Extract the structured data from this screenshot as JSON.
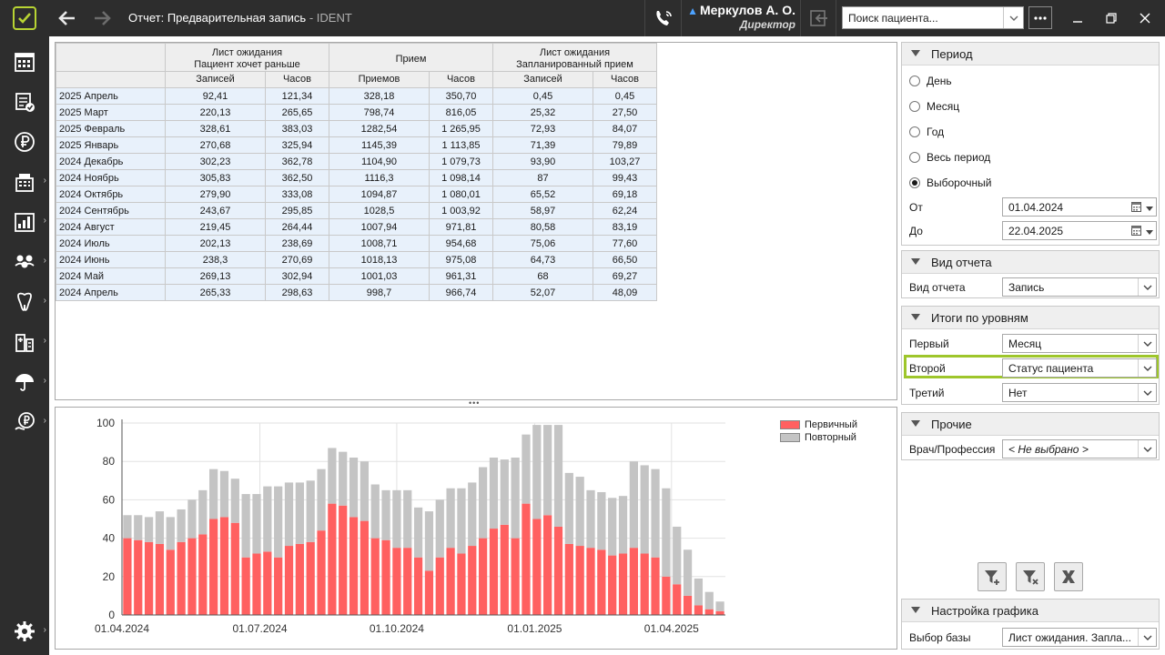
{
  "window": {
    "title": "Отчет: Предварительная запись",
    "app_suffix": "- IDENT",
    "user_name": "Меркулов А. О.",
    "user_role": "Директор",
    "search_placeholder": "Поиск пациента..."
  },
  "sidebar": {
    "items": [
      {
        "icon": "calendar-grid-icon",
        "has_submenu": false
      },
      {
        "icon": "document-check-icon",
        "has_submenu": false
      },
      {
        "icon": "ruble-icon",
        "has_submenu": false
      },
      {
        "icon": "cash-register-icon",
        "has_submenu": true
      },
      {
        "icon": "bar-chart-icon",
        "has_submenu": true
      },
      {
        "icon": "people-icon",
        "has_submenu": true
      },
      {
        "icon": "tooth-icon",
        "has_submenu": true
      },
      {
        "icon": "clinic-icon",
        "has_submenu": true
      },
      {
        "icon": "umbrella-icon",
        "has_submenu": true
      },
      {
        "icon": "ruble-hand-icon",
        "has_submenu": true
      },
      {
        "icon": "gear-icon",
        "has_submenu": true
      }
    ]
  },
  "report": {
    "group_headers": [
      "Лист ожидания\nПациент хочет раньше",
      "Прием",
      "Лист ожидания\nЗапланированный прием"
    ],
    "sub_headers": [
      "Записей",
      "Часов",
      "Приемов",
      "Часов",
      "Записей",
      "Часов"
    ],
    "rows": [
      {
        "label": "2025 Апрель",
        "cells": [
          "92,41",
          "121,34",
          "328,18",
          "350,70",
          "0,45",
          "0,45"
        ]
      },
      {
        "label": "2025 Март",
        "cells": [
          "220,13",
          "265,65",
          "798,74",
          "816,05",
          "25,32",
          "27,50"
        ]
      },
      {
        "label": "2025 Февраль",
        "cells": [
          "328,61",
          "383,03",
          "1282,54",
          "1 265,95",
          "72,93",
          "84,07"
        ]
      },
      {
        "label": "2025 Январь",
        "cells": [
          "270,68",
          "325,94",
          "1145,39",
          "1 113,85",
          "71,39",
          "79,89"
        ]
      },
      {
        "label": "2024 Декабрь",
        "cells": [
          "302,23",
          "362,78",
          "1104,90",
          "1 079,73",
          "93,90",
          "103,27"
        ]
      },
      {
        "label": "2024 Ноябрь",
        "cells": [
          "305,83",
          "362,50",
          "1116,3",
          "1 098,14",
          "87",
          "99,43"
        ]
      },
      {
        "label": "2024 Октябрь",
        "cells": [
          "279,90",
          "333,08",
          "1094,87",
          "1 080,01",
          "65,52",
          "69,18"
        ]
      },
      {
        "label": "2024 Сентябрь",
        "cells": [
          "243,67",
          "295,85",
          "1028,5",
          "1 003,92",
          "58,97",
          "62,24"
        ]
      },
      {
        "label": "2024 Август",
        "cells": [
          "219,45",
          "264,44",
          "1007,94",
          "971,81",
          "80,58",
          "83,19"
        ]
      },
      {
        "label": "2024 Июль",
        "cells": [
          "202,13",
          "238,69",
          "1008,71",
          "954,68",
          "75,06",
          "77,60"
        ]
      },
      {
        "label": "2024 Июнь",
        "cells": [
          "238,3",
          "270,69",
          "1018,13",
          "975,08",
          "64,73",
          "66,50"
        ]
      },
      {
        "label": "2024 Май",
        "cells": [
          "269,13",
          "302,94",
          "1001,03",
          "961,31",
          "68",
          "69,27"
        ]
      },
      {
        "label": "2024 Апрель",
        "cells": [
          "265,33",
          "298,63",
          "998,7",
          "966,74",
          "52,07",
          "48,09"
        ]
      }
    ]
  },
  "chart_data": {
    "type": "bar",
    "stacked": true,
    "y_ticks": [
      "0",
      "20",
      "40",
      "60",
      "80",
      "100"
    ],
    "ylim": [
      0,
      100
    ],
    "x_tick_labels": [
      "01.04.2024",
      "01.07.2024",
      "01.10.2024",
      "01.01.2025",
      "01.04.2025"
    ],
    "legend_position": "top-right",
    "series": [
      {
        "name": "Первичный",
        "color": "#ff6060",
        "values": [
          40,
          39,
          38,
          37,
          34,
          38,
          40,
          42,
          50,
          51,
          48,
          30,
          32,
          33,
          30,
          36,
          37,
          38,
          44,
          58,
          57,
          51,
          49,
          40,
          39,
          35,
          35,
          30,
          23,
          30,
          35,
          32,
          36,
          40,
          45,
          47,
          40,
          58,
          50,
          52,
          46,
          37,
          36,
          35,
          34,
          31,
          32,
          35,
          32,
          30,
          20,
          16,
          10,
          5,
          3,
          2
        ]
      },
      {
        "name": "Повторный",
        "color": "#c4c4c4",
        "values": [
          12,
          13,
          13,
          17,
          17,
          17,
          20,
          23,
          26,
          24,
          23,
          33,
          31,
          34,
          37,
          33,
          32,
          32,
          32,
          29,
          28,
          31,
          31,
          28,
          26,
          30,
          30,
          26,
          31,
          30,
          31,
          34,
          33,
          37,
          37,
          34,
          42,
          36,
          49,
          47,
          53,
          37,
          36,
          30,
          30,
          30,
          30,
          45,
          46,
          46,
          46,
          30,
          24,
          14,
          9,
          5
        ]
      }
    ]
  },
  "right_panel": {
    "period": {
      "title": "Период",
      "options": [
        "День",
        "Месяц",
        "Год",
        "Весь период",
        "Выборочный"
      ],
      "selected": 4,
      "from_label": "От",
      "from_value": "01.04.2024",
      "to_label": "До",
      "to_value": "22.04.2025"
    },
    "report_type": {
      "title": "Вид отчета",
      "label": "Вид отчета",
      "value": "Запись"
    },
    "levels": {
      "title": "Итоги по уровням",
      "first_label": "Первый",
      "first_value": "Месяц",
      "second_label": "Второй",
      "second_value": "Статус пациента",
      "third_label": "Третий",
      "third_value": "Нет"
    },
    "other": {
      "title": "Прочие",
      "doctor_label": "Врач/Профессия",
      "doctor_value": "< Не выбрано >"
    },
    "chart_settings": {
      "title": "Настройка графика",
      "base_label": "Выбор базы",
      "base_value": "Лист ожидания. Запла..."
    }
  },
  "colors": {
    "titlebar": "#2d2d2d",
    "accent": "#9ec62b",
    "primary_bar": "#ff6060",
    "repeat_bar": "#c4c4c4",
    "row_bg": "#e8f1fb"
  }
}
